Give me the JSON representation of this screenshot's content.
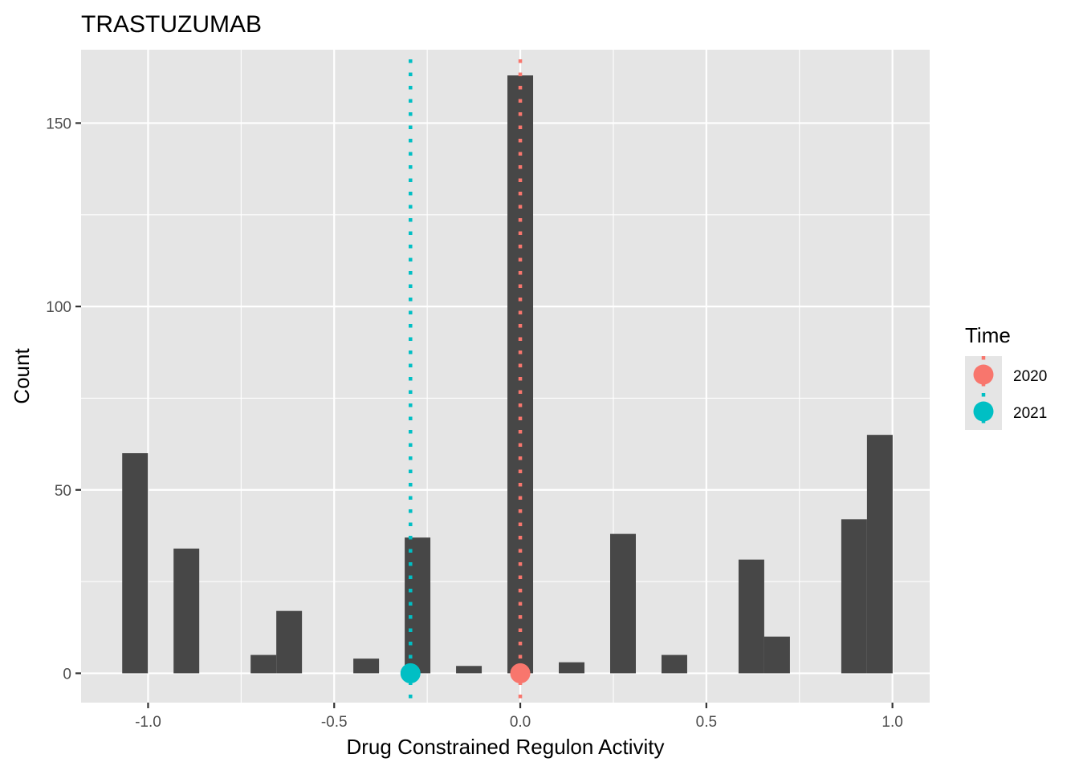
{
  "chart_data": {
    "type": "bar",
    "title": "TRASTUZUMAB",
    "xlabel": "Drug Constrained Regulon Activity",
    "ylabel": "Count",
    "xlim": [
      -1.18,
      1.1
    ],
    "ylim": [
      -8,
      170
    ],
    "x_ticks": [
      -1.0,
      -0.5,
      0.0,
      0.5,
      1.0
    ],
    "x_tick_labels": [
      "-1.0",
      "-0.5",
      "0.0",
      "0.5",
      "1.0"
    ],
    "y_ticks": [
      0,
      50,
      100,
      150
    ],
    "y_tick_labels": [
      "0",
      "50",
      "100",
      "150"
    ],
    "bin_width": 0.069,
    "bins": [
      {
        "x": -1.035,
        "count": 60
      },
      {
        "x": -0.897,
        "count": 34
      },
      {
        "x": -0.69,
        "count": 5
      },
      {
        "x": -0.621,
        "count": 17
      },
      {
        "x": -0.414,
        "count": 4
      },
      {
        "x": -0.276,
        "count": 37
      },
      {
        "x": -0.138,
        "count": 2
      },
      {
        "x": 0.0,
        "count": 163
      },
      {
        "x": 0.138,
        "count": 3
      },
      {
        "x": 0.276,
        "count": 38
      },
      {
        "x": 0.414,
        "count": 5
      },
      {
        "x": 0.621,
        "count": 31
      },
      {
        "x": 0.69,
        "count": 10
      },
      {
        "x": 0.897,
        "count": 42
      },
      {
        "x": 0.966,
        "count": 65
      }
    ],
    "bar_color": "#474747",
    "panel_background": "#e5e5e5",
    "grid": true,
    "markers": [
      {
        "name": "2020",
        "x": 0.0,
        "y": 0,
        "color": "#f8766d"
      },
      {
        "name": "2021",
        "x": -0.295,
        "y": 0,
        "color": "#00bfc4"
      }
    ],
    "legend": {
      "title": "Time",
      "position": "right",
      "entries": [
        "2020",
        "2021"
      ]
    }
  }
}
